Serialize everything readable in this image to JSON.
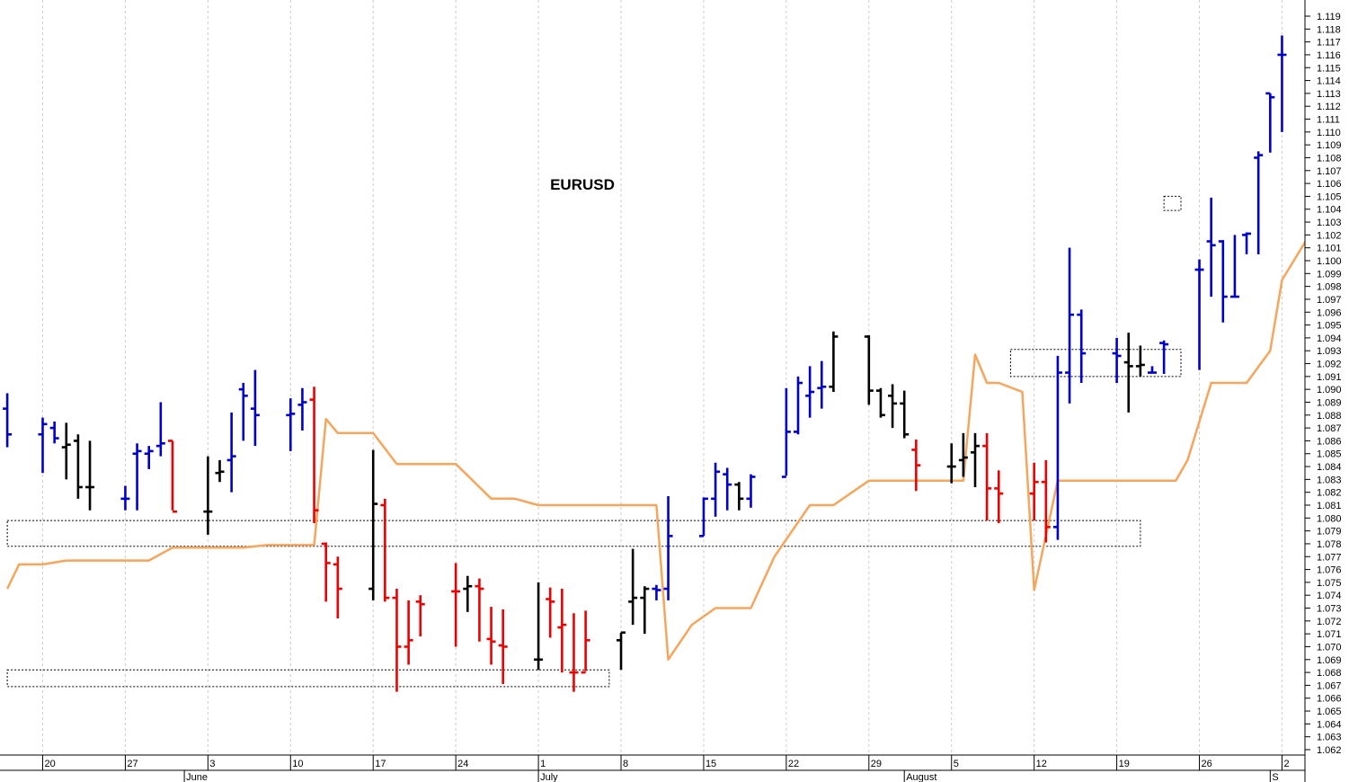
{
  "chart_data": {
    "type": "ohlc-bar",
    "title": "EURUSD",
    "y_axis": {
      "min": 1.062,
      "max": 1.119,
      "step": 0.001,
      "tick_labels": [
        "1.062",
        "1.063",
        "1.064",
        "1.065",
        "1.066",
        "1.067",
        "1.068",
        "1.069",
        "1.070",
        "1.071",
        "1.072",
        "1.073",
        "1.074",
        "1.075",
        "1.076",
        "1.077",
        "1.078",
        "1.079",
        "1.080",
        "1.081",
        "1.082",
        "1.083",
        "1.084",
        "1.085",
        "1.086",
        "1.087",
        "1.088",
        "1.089",
        "1.090",
        "1.091",
        "1.092",
        "1.093",
        "1.094",
        "1.095",
        "1.096",
        "1.097",
        "1.098",
        "1.099",
        "1.100",
        "1.101",
        "1.102",
        "1.103",
        "1.104",
        "1.105",
        "1.106",
        "1.107",
        "1.108",
        "1.109",
        "1.110",
        "1.111",
        "1.112",
        "1.113",
        "1.114",
        "1.115",
        "1.116",
        "1.117",
        "1.118",
        "1.119"
      ]
    },
    "x_axis": {
      "start": "2019-05-17",
      "end": "2019-09-02",
      "day_labels": [
        {
          "date": "2019-05-20",
          "label": "20"
        },
        {
          "date": "2019-05-27",
          "label": "27"
        },
        {
          "date": "2019-06-03",
          "label": "3"
        },
        {
          "date": "2019-06-10",
          "label": "10"
        },
        {
          "date": "2019-06-17",
          "label": "17"
        },
        {
          "date": "2019-06-24",
          "label": "24"
        },
        {
          "date": "2019-07-01",
          "label": "1"
        },
        {
          "date": "2019-07-08",
          "label": "8"
        },
        {
          "date": "2019-07-15",
          "label": "15"
        },
        {
          "date": "2019-07-22",
          "label": "22"
        },
        {
          "date": "2019-07-29",
          "label": "29"
        },
        {
          "date": "2019-08-05",
          "label": "5"
        },
        {
          "date": "2019-08-12",
          "label": "12"
        },
        {
          "date": "2019-08-19",
          "label": "19"
        },
        {
          "date": "2019-08-26",
          "label": "26"
        },
        {
          "date": "2019-09-02",
          "label": "2"
        }
      ],
      "month_labels": [
        {
          "date": "2019-06-01",
          "label": "June"
        },
        {
          "date": "2019-07-01",
          "label": "July"
        },
        {
          "date": "2019-08-01",
          "label": "August"
        },
        {
          "date": "2019-09-01",
          "label": "S"
        }
      ]
    },
    "colors": {
      "up": "#0000cc",
      "down": "#ee0000",
      "neutral": "#000000",
      "indicator": "#f6a55c",
      "grid": "#cccccc"
    },
    "bars": [
      {
        "date": "2019-05-17",
        "open": 1.0885,
        "high": 1.0897,
        "low": 1.0855,
        "close": 1.0865,
        "color": "up"
      },
      {
        "date": "2019-05-20",
        "open": 1.0865,
        "high": 1.0878,
        "low": 1.0835,
        "close": 1.0873,
        "color": "up"
      },
      {
        "date": "2019-05-21",
        "open": 1.087,
        "high": 1.0875,
        "low": 1.0858,
        "close": 1.0862,
        "color": "up"
      },
      {
        "date": "2019-05-22",
        "open": 1.0855,
        "high": 1.0874,
        "low": 1.083,
        "close": 1.0857,
        "color": "neutral"
      },
      {
        "date": "2019-05-23",
        "open": 1.086,
        "high": 1.0865,
        "low": 1.0815,
        "close": 1.0824,
        "color": "neutral"
      },
      {
        "date": "2019-05-24",
        "open": 1.0824,
        "high": 1.086,
        "low": 1.0806,
        "close": 1.0824,
        "color": "neutral"
      },
      {
        "date": "2019-05-27",
        "open": 1.0815,
        "high": 1.0825,
        "low": 1.0806,
        "close": 1.0815,
        "color": "up"
      },
      {
        "date": "2019-05-28",
        "open": 1.085,
        "high": 1.0858,
        "low": 1.0806,
        "close": 1.0852,
        "color": "up"
      },
      {
        "date": "2019-05-29",
        "open": 1.085,
        "high": 1.0856,
        "low": 1.0838,
        "close": 1.0852,
        "color": "up"
      },
      {
        "date": "2019-05-30",
        "open": 1.0856,
        "high": 1.089,
        "low": 1.0848,
        "close": 1.0858,
        "color": "up"
      },
      {
        "date": "2019-05-31",
        "open": 1.086,
        "high": 1.086,
        "low": 1.0806,
        "close": 1.0805,
        "color": "down"
      },
      {
        "date": "2019-06-03",
        "open": 1.0805,
        "high": 1.0848,
        "low": 1.0787,
        "close": 1.0805,
        "color": "neutral"
      },
      {
        "date": "2019-06-04",
        "open": 1.0835,
        "high": 1.0845,
        "low": 1.0828,
        "close": 1.0836,
        "color": "neutral"
      },
      {
        "date": "2019-06-05",
        "open": 1.0845,
        "high": 1.0882,
        "low": 1.082,
        "close": 1.0848,
        "color": "up"
      },
      {
        "date": "2019-06-06",
        "open": 1.09,
        "high": 1.0905,
        "low": 1.086,
        "close": 1.0895,
        "color": "up"
      },
      {
        "date": "2019-06-07",
        "open": 1.0885,
        "high": 1.0915,
        "low": 1.0856,
        "close": 1.088,
        "color": "up"
      },
      {
        "date": "2019-06-10",
        "open": 1.088,
        "high": 1.0893,
        "low": 1.0852,
        "close": 1.0881,
        "color": "up"
      },
      {
        "date": "2019-06-11",
        "open": 1.0888,
        "high": 1.0901,
        "low": 1.0868,
        "close": 1.089,
        "color": "up"
      },
      {
        "date": "2019-06-12",
        "open": 1.0892,
        "high": 1.0902,
        "low": 1.0796,
        "close": 1.0806,
        "color": "down"
      },
      {
        "date": "2019-06-13",
        "open": 1.078,
        "high": 1.0781,
        "low": 1.0735,
        "close": 1.0765,
        "color": "down"
      },
      {
        "date": "2019-06-14",
        "open": 1.0764,
        "high": 1.077,
        "low": 1.0722,
        "close": 1.0745,
        "color": "down"
      },
      {
        "date": "2019-06-17",
        "open": 1.0745,
        "high": 1.0853,
        "low": 1.0736,
        "close": 1.0811,
        "color": "neutral"
      },
      {
        "date": "2019-06-18",
        "open": 1.081,
        "high": 1.0815,
        "low": 1.0735,
        "close": 1.0738,
        "color": "down"
      },
      {
        "date": "2019-06-19",
        "open": 1.0738,
        "high": 1.0745,
        "low": 1.0665,
        "close": 1.07,
        "color": "down"
      },
      {
        "date": "2019-06-20",
        "open": 1.07,
        "high": 1.0736,
        "low": 1.0686,
        "close": 1.0705,
        "color": "down"
      },
      {
        "date": "2019-06-21",
        "open": 1.0735,
        "high": 1.074,
        "low": 1.0708,
        "close": 1.0733,
        "color": "down"
      },
      {
        "date": "2019-06-24",
        "open": 1.0743,
        "high": 1.0765,
        "low": 1.07,
        "close": 1.0743,
        "color": "down"
      },
      {
        "date": "2019-06-25",
        "open": 1.0745,
        "high": 1.0755,
        "low": 1.0727,
        "close": 1.0747,
        "color": "neutral"
      },
      {
        "date": "2019-06-26",
        "open": 1.0747,
        "high": 1.0753,
        "low": 1.0704,
        "close": 1.0745,
        "color": "down"
      },
      {
        "date": "2019-06-27",
        "open": 1.0706,
        "high": 1.0731,
        "low": 1.0686,
        "close": 1.0704,
        "color": "down"
      },
      {
        "date": "2019-06-28",
        "open": 1.0701,
        "high": 1.0729,
        "low": 1.0671,
        "close": 1.07,
        "color": "down"
      },
      {
        "date": "2019-07-01",
        "open": 1.069,
        "high": 1.075,
        "low": 1.0682,
        "close": 1.069,
        "color": "neutral"
      },
      {
        "date": "2019-07-02",
        "open": 1.0737,
        "high": 1.0746,
        "low": 1.0707,
        "close": 1.0735,
        "color": "down"
      },
      {
        "date": "2019-07-03",
        "open": 1.0715,
        "high": 1.0745,
        "low": 1.068,
        "close": 1.0717,
        "color": "down"
      },
      {
        "date": "2019-07-04",
        "open": 1.068,
        "high": 1.0726,
        "low": 1.0665,
        "close": 1.068,
        "color": "down"
      },
      {
        "date": "2019-07-05",
        "open": 1.068,
        "high": 1.0728,
        "low": 1.0681,
        "close": 1.0705,
        "color": "down"
      },
      {
        "date": "2019-07-08",
        "open": 1.0705,
        "high": 1.0711,
        "low": 1.0682,
        "close": 1.0711,
        "color": "neutral"
      },
      {
        "date": "2019-07-09",
        "open": 1.0735,
        "high": 1.0776,
        "low": 1.0717,
        "close": 1.0738,
        "color": "neutral"
      },
      {
        "date": "2019-07-10",
        "open": 1.0738,
        "high": 1.0747,
        "low": 1.071,
        "close": 1.0745,
        "color": "neutral"
      },
      {
        "date": "2019-07-11",
        "open": 1.0745,
        "high": 1.0748,
        "low": 1.0736,
        "close": 1.0744,
        "color": "up"
      },
      {
        "date": "2019-07-12",
        "open": 1.0745,
        "high": 1.0817,
        "low": 1.0736,
        "close": 1.0786,
        "color": "up"
      },
      {
        "date": "2019-07-15",
        "open": 1.0786,
        "high": 1.0816,
        "low": 1.0786,
        "close": 1.0815,
        "color": "up"
      },
      {
        "date": "2019-07-16",
        "open": 1.0815,
        "high": 1.0843,
        "low": 1.0801,
        "close": 1.0836,
        "color": "up"
      },
      {
        "date": "2019-07-17",
        "open": 1.0834,
        "high": 1.0839,
        "low": 1.0806,
        "close": 1.0826,
        "color": "up"
      },
      {
        "date": "2019-07-18",
        "open": 1.0826,
        "high": 1.0828,
        "low": 1.0806,
        "close": 1.0815,
        "color": "neutral"
      },
      {
        "date": "2019-07-19",
        "open": 1.0815,
        "high": 1.0834,
        "low": 1.0808,
        "close": 1.0832,
        "color": "up"
      },
      {
        "date": "2019-07-22",
        "open": 1.0832,
        "high": 1.0901,
        "low": 1.0833,
        "close": 1.0867,
        "color": "up"
      },
      {
        "date": "2019-07-23",
        "open": 1.0867,
        "high": 1.091,
        "low": 1.0865,
        "close": 1.0905,
        "color": "up"
      },
      {
        "date": "2019-07-24",
        "open": 1.0895,
        "high": 1.0918,
        "low": 1.0878,
        "close": 1.0898,
        "color": "up"
      },
      {
        "date": "2019-07-25",
        "open": 1.0901,
        "high": 1.0922,
        "low": 1.0885,
        "close": 1.0902,
        "color": "up"
      },
      {
        "date": "2019-07-26",
        "open": 1.0902,
        "high": 1.0945,
        "low": 1.0898,
        "close": 1.0941,
        "color": "neutral"
      },
      {
        "date": "2019-07-29",
        "open": 1.0941,
        "high": 1.0942,
        "low": 1.0888,
        "close": 1.0899,
        "color": "neutral"
      },
      {
        "date": "2019-07-30",
        "open": 1.0899,
        "high": 1.0901,
        "low": 1.0878,
        "close": 1.088,
        "color": "neutral"
      },
      {
        "date": "2019-07-31",
        "open": 1.0895,
        "high": 1.0904,
        "low": 1.087,
        "close": 1.0889,
        "color": "neutral"
      },
      {
        "date": "2019-08-01",
        "open": 1.0889,
        "high": 1.0899,
        "low": 1.0862,
        "close": 1.0865,
        "color": "neutral"
      },
      {
        "date": "2019-08-02",
        "open": 1.0853,
        "high": 1.0861,
        "low": 1.0821,
        "close": 1.0841,
        "color": "down"
      },
      {
        "date": "2019-08-05",
        "open": 1.084,
        "high": 1.0858,
        "low": 1.0827,
        "close": 1.084,
        "color": "neutral"
      },
      {
        "date": "2019-08-06",
        "open": 1.0845,
        "high": 1.0866,
        "low": 1.0832,
        "close": 1.0847,
        "color": "neutral"
      },
      {
        "date": "2019-08-07",
        "open": 1.0851,
        "high": 1.0866,
        "low": 1.0824,
        "close": 1.0856,
        "color": "neutral"
      },
      {
        "date": "2019-08-08",
        "open": 1.0856,
        "high": 1.0866,
        "low": 1.0798,
        "close": 1.0823,
        "color": "down"
      },
      {
        "date": "2019-08-09",
        "open": 1.0823,
        "high": 1.0837,
        "low": 1.0796,
        "close": 1.0819,
        "color": "down"
      },
      {
        "date": "2019-08-12",
        "open": 1.0819,
        "high": 1.0843,
        "low": 1.0798,
        "close": 1.0828,
        "color": "down"
      },
      {
        "date": "2019-08-13",
        "open": 1.0828,
        "high": 1.0845,
        "low": 1.0781,
        "close": 1.0793,
        "color": "down"
      },
      {
        "date": "2019-08-14",
        "open": 1.0793,
        "high": 1.0926,
        "low": 1.0783,
        "close": 1.0913,
        "color": "up"
      },
      {
        "date": "2019-08-15",
        "open": 1.0913,
        "high": 1.101,
        "low": 1.0889,
        "close": 1.0958,
        "color": "up"
      },
      {
        "date": "2019-08-16",
        "open": 1.0958,
        "high": 1.0962,
        "low": 1.0905,
        "close": 1.0928,
        "color": "up"
      },
      {
        "date": "2019-08-19",
        "open": 1.0928,
        "high": 1.094,
        "low": 1.0905,
        "close": 1.0926,
        "color": "up"
      },
      {
        "date": "2019-08-20",
        "open": 1.0921,
        "high": 1.0944,
        "low": 1.0882,
        "close": 1.0918,
        "color": "neutral"
      },
      {
        "date": "2019-08-21",
        "open": 1.0918,
        "high": 1.0934,
        "low": 1.091,
        "close": 1.0919,
        "color": "neutral"
      },
      {
        "date": "2019-08-22",
        "open": 1.0913,
        "high": 1.0918,
        "low": 1.0913,
        "close": 1.0913,
        "color": "up"
      },
      {
        "date": "2019-08-23",
        "open": 1.0936,
        "high": 1.0938,
        "low": 1.0912,
        "close": 1.0935,
        "color": "up"
      },
      {
        "date": "2019-08-26",
        "open": 1.0993,
        "high": 1.1001,
        "low": 1.0915,
        "close": 1.0993,
        "color": "up"
      },
      {
        "date": "2019-08-27",
        "open": 1.1015,
        "high": 1.1049,
        "low": 1.0972,
        "close": 1.1012,
        "color": "up"
      },
      {
        "date": "2019-08-28",
        "open": 1.1015,
        "high": 1.1016,
        "low": 1.0952,
        "close": 1.0972,
        "color": "up"
      },
      {
        "date": "2019-08-29",
        "open": 1.0972,
        "high": 1.102,
        "low": 1.0972,
        "close": 1.0972,
        "color": "up"
      },
      {
        "date": "2019-08-30",
        "open": 1.102,
        "high": 1.1022,
        "low": 1.1005,
        "close": 1.1021,
        "color": "up"
      },
      {
        "date": "2019-08-31",
        "open": 1.108,
        "high": 1.1085,
        "low": 1.1005,
        "close": 1.1082,
        "color": "up"
      },
      {
        "date": "2019-09-01",
        "open": 1.113,
        "high": 1.113,
        "low": 1.1084,
        "close": 1.1127,
        "color": "up"
      },
      {
        "date": "2019-09-02",
        "open": 1.116,
        "high": 1.1175,
        "low": 1.11,
        "close": 1.116,
        "color": "up"
      }
    ],
    "indicator_line": [
      [
        "2019-05-17",
        1.0745
      ],
      [
        "2019-05-18",
        1.0764
      ],
      [
        "2019-05-20",
        1.0764
      ],
      [
        "2019-05-22",
        1.0767
      ],
      [
        "2019-05-29",
        1.0767
      ],
      [
        "2019-05-31",
        1.0777
      ],
      [
        "2019-06-06",
        1.0777
      ],
      [
        "2019-06-08",
        1.0779
      ],
      [
        "2019-06-12",
        1.0779
      ],
      [
        "2019-06-13",
        1.0877
      ],
      [
        "2019-06-14",
        1.0866
      ],
      [
        "2019-06-17",
        1.0866
      ],
      [
        "2019-06-19",
        1.0842
      ],
      [
        "2019-06-24",
        1.0842
      ],
      [
        "2019-06-27",
        1.0815
      ],
      [
        "2019-06-29",
        1.0815
      ],
      [
        "2019-07-01",
        1.081
      ],
      [
        "2019-07-07",
        1.081
      ],
      [
        "2019-07-10",
        1.081
      ],
      [
        "2019-07-11",
        1.081
      ],
      [
        "2019-07-12",
        1.069
      ],
      [
        "2019-07-14",
        1.0717
      ],
      [
        "2019-07-16",
        1.073
      ],
      [
        "2019-07-19",
        1.073
      ],
      [
        "2019-07-21",
        1.077
      ],
      [
        "2019-07-24",
        1.081
      ],
      [
        "2019-07-26",
        1.081
      ],
      [
        "2019-07-29",
        1.0829
      ],
      [
        "2019-08-03",
        1.0829
      ],
      [
        "2019-08-05",
        1.0829
      ],
      [
        "2019-08-06",
        1.0829
      ],
      [
        "2019-08-07",
        1.0927
      ],
      [
        "2019-08-08",
        1.0905
      ],
      [
        "2019-08-09",
        1.0905
      ],
      [
        "2019-08-11",
        1.0898
      ],
      [
        "2019-08-12",
        1.0744
      ],
      [
        "2019-08-14",
        1.0829
      ],
      [
        "2019-08-15",
        1.0829
      ],
      [
        "2019-08-19",
        1.0829
      ],
      [
        "2019-08-24",
        1.0829
      ],
      [
        "2019-08-25",
        1.0845
      ],
      [
        "2019-08-27",
        1.0905
      ],
      [
        "2019-08-30",
        1.0905
      ],
      [
        "2019-09-01",
        1.093
      ],
      [
        "2019-09-02",
        1.0985
      ],
      [
        "2019-09-04",
        1.1015
      ]
    ],
    "zones": [
      {
        "start": "2019-05-17",
        "end": "2019-08-21",
        "low": 1.0778,
        "high": 1.0798
      },
      {
        "start": "2019-05-17",
        "end": "2019-07-07",
        "low": 1.0669,
        "high": 1.0682
      },
      {
        "start": "2019-08-10",
        "end": "2019-09-03",
        "low": 1.091,
        "high": 1.0931
      },
      {
        "start": "2019-08-23",
        "end": "2019-09-03",
        "low": 1.1039,
        "high": 1.105
      }
    ]
  }
}
